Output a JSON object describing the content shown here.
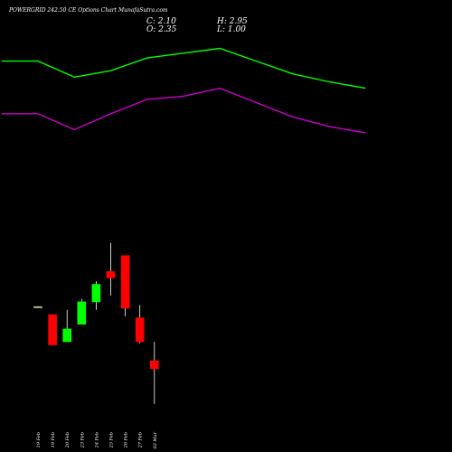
{
  "title": "POWERGRID 242.50 CE Options Chart MunafaSutra.com",
  "ohlc": {
    "close_label": "C: 2.10",
    "high_label": "H: 2.95",
    "open_label": "O: 2.35",
    "low_label": "L: 1.00"
  },
  "colors": {
    "background": "#000000",
    "upper_band": "#00ff00",
    "lower_band": "#cc00cc",
    "up_candle": "#00ff00",
    "down_candle": "#ff0000",
    "wick": "#ffffff"
  },
  "chart_data": {
    "type": "candlestick",
    "categories": [
      "19 Feb",
      "19 Feb",
      "20 Feb",
      "23 Feb",
      "24 Feb",
      "25 Feb",
      "26 Feb",
      "27 Feb",
      "02 Mar"
    ],
    "candles": [
      {
        "open": 4.05,
        "close": 4.05,
        "high": 4.06,
        "low": 4.04
      },
      {
        "open": 3.8,
        "close": 2.85,
        "high": 3.8,
        "low": 2.85
      },
      {
        "open": 2.95,
        "close": 3.35,
        "high": 3.95,
        "low": 2.95
      },
      {
        "open": 3.5,
        "close": 4.2,
        "high": 4.3,
        "low": 3.5
      },
      {
        "open": 4.2,
        "close": 4.75,
        "high": 4.85,
        "low": 3.95
      },
      {
        "open": 5.15,
        "close": 4.95,
        "high": 6.05,
        "low": 4.4
      },
      {
        "open": 5.65,
        "close": 4.0,
        "high": 5.65,
        "low": 3.75
      },
      {
        "open": 3.7,
        "close": 2.95,
        "high": 4.1,
        "low": 2.9
      },
      {
        "open": 2.35,
        "close": 2.1,
        "high": 2.95,
        "low": 1.0
      }
    ],
    "bands": {
      "x_index": [
        -2.5,
        0,
        2.5,
        5,
        7.5,
        10,
        12.5,
        15,
        17.5,
        20,
        22.5
      ],
      "upper": [
        11.75,
        11.75,
        11.25,
        11.45,
        11.85,
        12.0,
        12.15,
        11.75,
        11.35,
        11.1,
        10.9
      ],
      "lower": [
        10.1,
        10.1,
        9.6,
        10.1,
        10.55,
        10.65,
        10.9,
        10.45,
        10.0,
        9.7,
        9.5
      ]
    },
    "ylim": [
      0.2,
      13.1
    ]
  }
}
